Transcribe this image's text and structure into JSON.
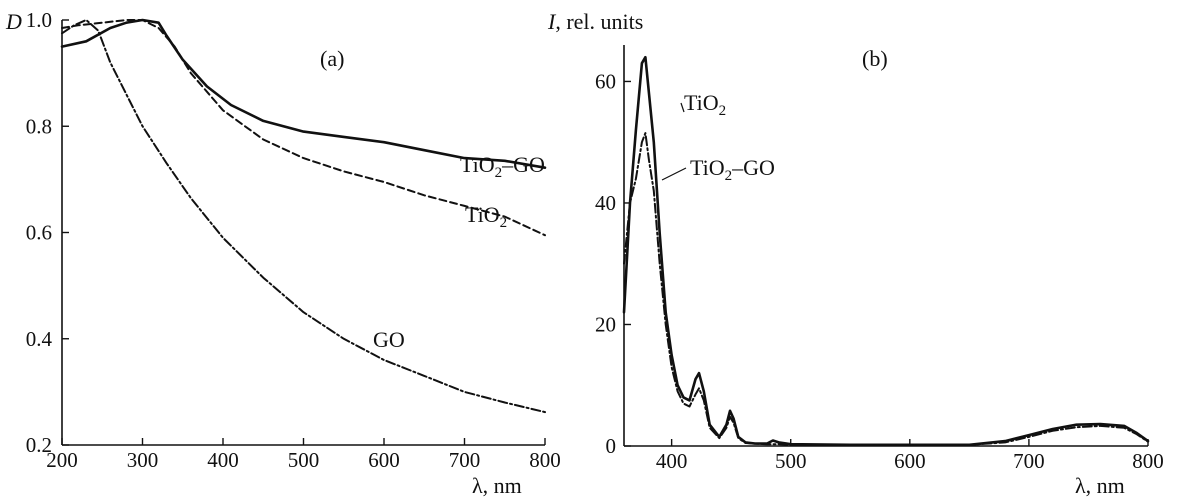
{
  "chart_data": [
    {
      "type": "line",
      "panel_label": "(a)",
      "ylabel": "D",
      "xlabel": "λ, nm",
      "xlim": [
        200,
        800
      ],
      "ylim": [
        0.2,
        1.0
      ],
      "xticks": [
        "200",
        "300",
        "400",
        "500",
        "600",
        "700",
        "800"
      ],
      "yticks": [
        "0.2",
        "0.4",
        "0.6",
        "0.8",
        "1.0"
      ],
      "grid": false,
      "series": [
        {
          "name": "TiO₂–GO",
          "label_parts": {
            "base": "TiO",
            "sub": "2",
            "rest": "–GO"
          },
          "style": "solid",
          "x": [
            200,
            230,
            260,
            280,
            300,
            320,
            330,
            350,
            380,
            410,
            450,
            500,
            550,
            600,
            650,
            700,
            750,
            800
          ],
          "y": [
            0.95,
            0.96,
            0.985,
            0.995,
            1.0,
            0.995,
            0.97,
            0.925,
            0.875,
            0.84,
            0.81,
            0.79,
            0.78,
            0.77,
            0.755,
            0.74,
            0.735,
            0.722
          ]
        },
        {
          "name": "TiO₂",
          "label_parts": {
            "base": "TiO",
            "sub": "2",
            "rest": ""
          },
          "style": "dashed",
          "x": [
            200,
            220,
            250,
            280,
            300,
            320,
            340,
            360,
            400,
            450,
            500,
            550,
            600,
            650,
            700,
            750,
            800
          ],
          "y": [
            0.985,
            0.99,
            0.995,
            1.0,
            1.0,
            0.985,
            0.95,
            0.9,
            0.83,
            0.775,
            0.74,
            0.715,
            0.695,
            0.67,
            0.65,
            0.63,
            0.595
          ]
        },
        {
          "name": "GO",
          "label_parts": {
            "base": "GO",
            "sub": "",
            "rest": ""
          },
          "style": "dashdot",
          "x": [
            200,
            215,
            230,
            245,
            260,
            280,
            300,
            330,
            360,
            400,
            450,
            500,
            550,
            600,
            650,
            700,
            750,
            800
          ],
          "y": [
            0.975,
            0.99,
            1.0,
            0.98,
            0.92,
            0.86,
            0.8,
            0.73,
            0.665,
            0.59,
            0.515,
            0.45,
            0.4,
            0.36,
            0.33,
            0.3,
            0.28,
            0.262
          ]
        }
      ]
    },
    {
      "type": "line",
      "panel_label": "(b)",
      "ylabel": "I, rel. units",
      "ylabel_parts": {
        "italic": "I",
        "rest": ", rel. units"
      },
      "xlabel": "λ, nm",
      "xlim": [
        360,
        800
      ],
      "ylim": [
        0,
        66
      ],
      "xticks": [
        "400",
        "500",
        "600",
        "700",
        "800"
      ],
      "yticks": [
        "0",
        "20",
        "40",
        "60"
      ],
      "grid": false,
      "series": [
        {
          "name": "TiO₂",
          "label_parts": {
            "base": "TiO",
            "sub": "2",
            "rest": ""
          },
          "style": "solid",
          "x": [
            360,
            365,
            370,
            375,
            378,
            381,
            385,
            390,
            395,
            400,
            405,
            410,
            415,
            420,
            423,
            427,
            432,
            440,
            446,
            449,
            452,
            456,
            462,
            470,
            480,
            485,
            490,
            500,
            550,
            600,
            650,
            680,
            700,
            720,
            740,
            760,
            780,
            790,
            800
          ],
          "y": [
            22,
            40,
            52,
            63,
            64,
            58,
            50,
            35,
            22,
            15,
            10,
            8,
            7.5,
            11,
            12,
            9,
            3.5,
            1.5,
            3.5,
            5.8,
            4.5,
            1.5,
            0.6,
            0.4,
            0.4,
            0.9,
            0.6,
            0.3,
            0.2,
            0.2,
            0.2,
            0.8,
            1.8,
            2.8,
            3.5,
            3.6,
            3.3,
            2.2,
            0.8
          ]
        },
        {
          "name": "TiO₂–GO",
          "label_parts": {
            "base": "TiO",
            "sub": "2",
            "rest": "–GO"
          },
          "style": "dashdot",
          "x": [
            360,
            365,
            370,
            375,
            378,
            381,
            385,
            390,
            395,
            400,
            405,
            410,
            415,
            420,
            423,
            427,
            432,
            440,
            446,
            449,
            452,
            456,
            462,
            470,
            480,
            490,
            500,
            550,
            600,
            650,
            680,
            700,
            720,
            740,
            760,
            780,
            790,
            800
          ],
          "y": [
            30,
            40,
            44,
            50,
            51.5,
            47,
            42,
            30,
            20,
            13,
            9,
            7,
            6.5,
            8.5,
            9.5,
            7.5,
            3,
            1.3,
            3,
            4.8,
            3.8,
            1.3,
            0.5,
            0.4,
            0.3,
            0.3,
            0.2,
            0.2,
            0.2,
            0.2,
            0.6,
            1.5,
            2.5,
            3.1,
            3.3,
            3,
            2,
            0.7
          ]
        }
      ]
    }
  ]
}
